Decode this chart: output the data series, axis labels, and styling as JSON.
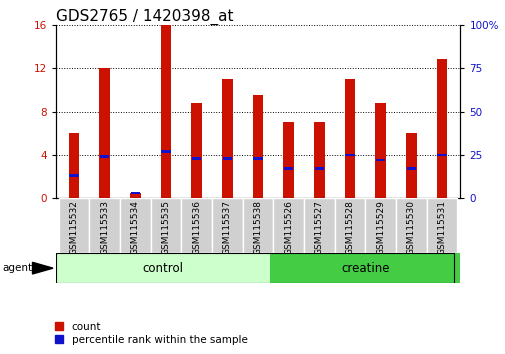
{
  "title": "GDS2765 / 1420398_at",
  "categories": [
    "GSM115532",
    "GSM115533",
    "GSM115534",
    "GSM115535",
    "GSM115536",
    "GSM115537",
    "GSM115538",
    "GSM115526",
    "GSM115527",
    "GSM115528",
    "GSM115529",
    "GSM115530",
    "GSM115531"
  ],
  "count_values": [
    6.0,
    12.0,
    0.5,
    16.0,
    8.8,
    11.0,
    9.5,
    7.0,
    7.0,
    11.0,
    8.8,
    6.0,
    12.8
  ],
  "percentile_values": [
    13,
    24,
    3,
    27,
    23,
    23,
    23,
    17,
    17,
    25,
    22,
    17,
    25
  ],
  "ylim_left": [
    0,
    16
  ],
  "ylim_right": [
    0,
    100
  ],
  "yticks_left": [
    0,
    4,
    8,
    12,
    16
  ],
  "yticks_right": [
    0,
    25,
    50,
    75,
    100
  ],
  "ytick_labels_right": [
    "0",
    "25",
    "50",
    "75",
    "100%"
  ],
  "bar_color": "#cc1100",
  "percentile_color": "#1111cc",
  "bar_width": 0.35,
  "grid_color": "black",
  "n_control": 7,
  "n_creatine": 6,
  "control_color": "#ccffcc",
  "creatine_color": "#44cc44",
  "agent_label": "agent",
  "control_label": "control",
  "creatine_label": "creatine",
  "legend_count_label": "count",
  "legend_percentile_label": "percentile rank within the sample",
  "bg_color": "#ffffff",
  "tick_label_color_left": "#cc1100",
  "tick_label_color_right": "#1111cc",
  "title_fontsize": 11,
  "tick_fontsize": 7.5
}
